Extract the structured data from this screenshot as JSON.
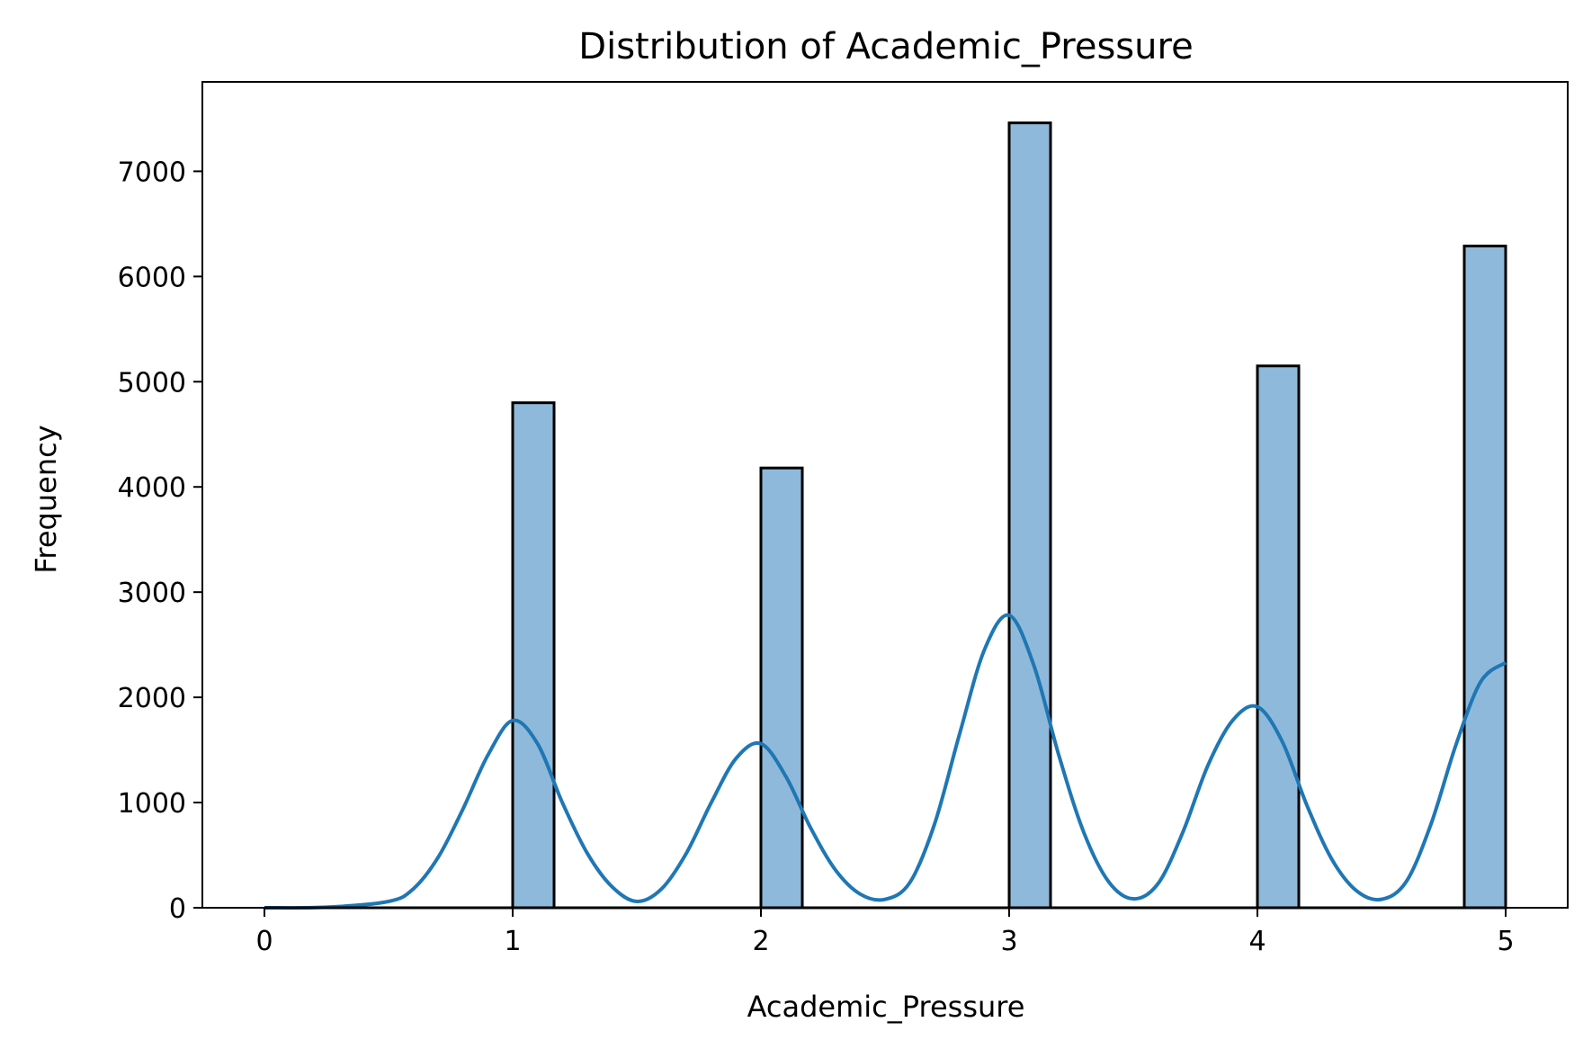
{
  "chart_data": {
    "type": "bar",
    "title": "Distribution of Academic_Pressure",
    "xlabel": "Academic_Pressure",
    "ylabel": "Frequency",
    "xlim": [
      -0.25,
      5.25
    ],
    "ylim": [
      0,
      7850
    ],
    "xticks": [
      "0",
      "1",
      "2",
      "3",
      "4",
      "5"
    ],
    "yticks": [
      "0",
      "1000",
      "2000",
      "3000",
      "4000",
      "5000",
      "6000",
      "7000"
    ],
    "grid": false,
    "legend": "none",
    "bars": [
      {
        "x_start": 1.0,
        "x_end": 1.1667,
        "value": 4800
      },
      {
        "x_start": 2.0,
        "x_end": 2.1667,
        "value": 4180
      },
      {
        "x_start": 3.0,
        "x_end": 3.1667,
        "value": 7460
      },
      {
        "x_start": 4.0,
        "x_end": 4.1667,
        "value": 5150
      },
      {
        "x_start": 4.8333,
        "x_end": 5.0,
        "value": 6290
      }
    ],
    "kde": {
      "x": [
        0,
        0.25,
        0.5,
        0.6,
        0.7,
        0.8,
        0.9,
        1.0,
        1.1,
        1.2,
        1.3,
        1.4,
        1.5,
        1.6,
        1.7,
        1.8,
        1.9,
        2.0,
        2.1,
        2.2,
        2.3,
        2.4,
        2.5,
        2.6,
        2.7,
        2.8,
        2.9,
        3.0,
        3.1,
        3.2,
        3.3,
        3.4,
        3.5,
        3.6,
        3.7,
        3.8,
        3.9,
        4.0,
        4.1,
        4.2,
        4.3,
        4.4,
        4.5,
        4.6,
        4.7,
        4.8,
        4.9,
        5.0
      ],
      "y": [
        0,
        5,
        60,
        180,
        480,
        940,
        1450,
        1780,
        1560,
        1000,
        520,
        200,
        60,
        180,
        520,
        1000,
        1420,
        1560,
        1250,
        760,
        360,
        130,
        80,
        240,
        800,
        1650,
        2450,
        2780,
        2300,
        1450,
        720,
        250,
        85,
        230,
        720,
        1350,
        1780,
        1910,
        1580,
        970,
        460,
        160,
        80,
        250,
        800,
        1550,
        2150,
        2330
      ]
    },
    "bar_color": "#8fb9da",
    "bar_edge_color": "#000000",
    "line_color": "#1f77b4"
  }
}
